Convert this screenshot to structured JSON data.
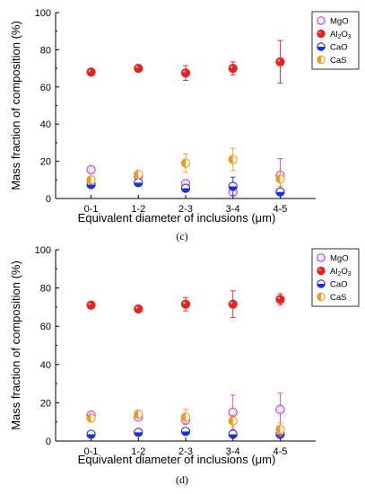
{
  "colors": {
    "MgO": "#cc44dd",
    "Al2O3": "#e5231f",
    "CaO": "#1f2fd6",
    "CaS": "#f39a1a"
  },
  "legend_labels": [
    {
      "key": "MgO",
      "text": "MgO"
    },
    {
      "key": "Al2O3",
      "text": "Al2O3"
    },
    {
      "key": "CaO",
      "text": "CaO"
    },
    {
      "key": "CaS",
      "text": "CaS"
    }
  ],
  "chart_data": [
    {
      "type": "scatter",
      "panel_label": "(c)",
      "xlabel": "Equivalent diameter of inclusions (μm)",
      "ylabel": "Mass fraction of composition (%)",
      "categories": [
        "0-1",
        "1-2",
        "2-3",
        "3-4",
        "4-5"
      ],
      "ylim": [
        0,
        100
      ],
      "yticks": [
        0,
        20,
        40,
        60,
        80,
        100
      ],
      "legend_position": "top-right",
      "series": [
        {
          "name": "MgO",
          "marker": "hollow",
          "values": [
            15.5,
            12,
            8,
            3.5,
            12.5
          ],
          "errors": [
            1,
            1,
            1,
            1,
            9
          ]
        },
        {
          "name": "Al2O3",
          "marker": "solid",
          "values": [
            68,
            70,
            67.5,
            70,
            73.5
          ],
          "errors": [
            0,
            0,
            4,
            3.5,
            11.5
          ]
        },
        {
          "name": "CaO",
          "marker": "half-bottom",
          "values": [
            7.5,
            8.5,
            5.5,
            6.5,
            3.5
          ],
          "errors": [
            0,
            0,
            0,
            5,
            0
          ]
        },
        {
          "name": "CaS",
          "marker": "half-left",
          "values": [
            10,
            13,
            19,
            21,
            10.5
          ],
          "errors": [
            0,
            0,
            5,
            6,
            4
          ]
        }
      ]
    },
    {
      "type": "scatter",
      "panel_label": "(d)",
      "xlabel": "Equivalent diameter of inclusions (μm)",
      "ylabel": "Mass fraction of composition (%)",
      "categories": [
        "0-1",
        "1-2",
        "2-3",
        "3-4",
        "4-5"
      ],
      "ylim": [
        0,
        100
      ],
      "yticks": [
        0,
        20,
        40,
        60,
        80,
        100
      ],
      "legend_position": "top-right",
      "series": [
        {
          "name": "MgO",
          "marker": "hollow",
          "values": [
            13.5,
            12.5,
            11,
            15,
            16.5
          ],
          "errors": [
            1,
            1,
            1,
            9,
            8.5
          ]
        },
        {
          "name": "Al2O3",
          "marker": "solid",
          "values": [
            71,
            69,
            71.5,
            71.5,
            74
          ],
          "errors": [
            0,
            0,
            3.5,
            7,
            3
          ]
        },
        {
          "name": "CaO",
          "marker": "half-bottom",
          "values": [
            3.5,
            4.5,
            5,
            3.5,
            3.5
          ],
          "errors": [
            0,
            0,
            0,
            0,
            0
          ]
        },
        {
          "name": "CaS",
          "marker": "half-left",
          "values": [
            12,
            14,
            12.5,
            10.5,
            6
          ],
          "errors": [
            1,
            1,
            4,
            3,
            3.5
          ]
        }
      ]
    }
  ]
}
